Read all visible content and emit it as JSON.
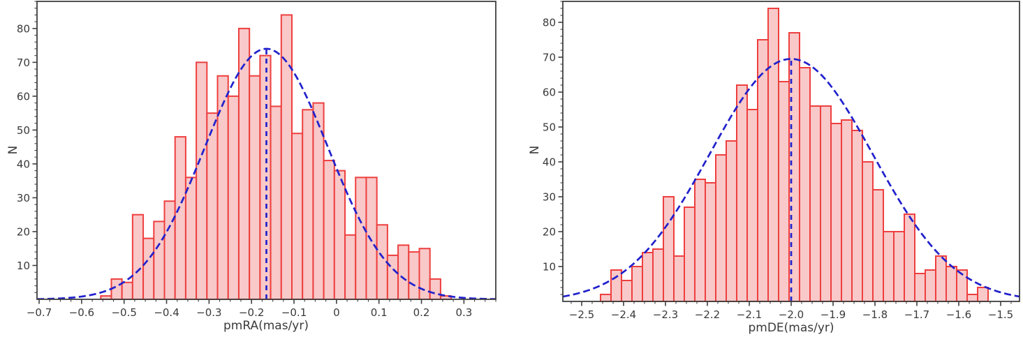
{
  "figure": {
    "background": "#ffffff",
    "description": "Two proper-motion histograms with Gaussian fits and mean lines"
  },
  "chart_data": [
    {
      "type": "bar",
      "subtype": "histogram-with-gaussian-fit",
      "title": "",
      "xlabel": "pmRA(mas/yr)",
      "ylabel": "N",
      "xlim": [
        -0.705,
        0.375
      ],
      "ylim": [
        0,
        88
      ],
      "x_tick_values": [
        -0.7,
        -0.6,
        -0.5,
        -0.4,
        -0.3,
        -0.2,
        -0.1,
        0,
        0.1,
        0.2,
        0.3
      ],
      "x_tick_labels": [
        "−0.7",
        "−0.6",
        "−0.5",
        "−0.4",
        "−0.3",
        "−0.2",
        "−0.1",
        "0",
        "0.1",
        "0.2",
        "0.3"
      ],
      "y_tick_values": [
        10,
        20,
        30,
        40,
        50,
        60,
        70,
        80
      ],
      "y_tick_labels": [
        "10",
        "20",
        "30",
        "40",
        "50",
        "60",
        "70",
        "80"
      ],
      "x_minor_step": 0.025,
      "y_minor_step": 2,
      "grid": false,
      "bins": {
        "start": -0.555,
        "width": 0.025,
        "counts": [
          1,
          6,
          5,
          25,
          18,
          23,
          29,
          48,
          36,
          70,
          55,
          66,
          60,
          80,
          66,
          72,
          57,
          84,
          49,
          56,
          58,
          41,
          38,
          19,
          36,
          36,
          22,
          13,
          16,
          14,
          15,
          6,
          1
        ]
      },
      "gaussian_fit": {
        "amplitude": 74,
        "mean": -0.165,
        "sigma": 0.145
      },
      "mean_line": {
        "x": -0.165,
        "top": 74
      },
      "colors": {
        "bar_fill": "#f9c8c8",
        "bar_edge": "#ee3f3f",
        "fit_curve": "#2121cc",
        "mean_line": "#2121cc",
        "axis": "#3f3f3f"
      }
    },
    {
      "type": "bar",
      "subtype": "histogram-with-gaussian-fit",
      "title": "",
      "xlabel": "pmDE(mas/yr)",
      "ylabel": "N",
      "xlim": [
        -2.545,
        -1.455
      ],
      "ylim": [
        0,
        86
      ],
      "x_tick_values": [
        -2.5,
        -2.4,
        -2.3,
        -2.2,
        -2.1,
        -2.0,
        -1.9,
        -1.8,
        -1.7,
        -1.6,
        -1.5
      ],
      "x_tick_labels": [
        "−2.5",
        "−2.4",
        "−2.3",
        "−2.2",
        "−2.1",
        "−2.0",
        "−1.9",
        "−1.8",
        "−1.7",
        "−1.6",
        "−1.5"
      ],
      "y_tick_values": [
        10,
        20,
        30,
        40,
        50,
        60,
        70,
        80
      ],
      "y_tick_labels": [
        "10",
        "20",
        "30",
        "40",
        "50",
        "60",
        "70",
        "80"
      ],
      "x_minor_step": 0.025,
      "y_minor_step": 2,
      "grid": false,
      "bins": {
        "start": -2.455,
        "width": 0.025,
        "counts": [
          2,
          9,
          6,
          10,
          14,
          15,
          30,
          13,
          27,
          35,
          34,
          42,
          46,
          62,
          55,
          75,
          84,
          63,
          77,
          67,
          56,
          56,
          51,
          52,
          49,
          40,
          32,
          20,
          20,
          25,
          8,
          9,
          13,
          10,
          9,
          2,
          4
        ]
      },
      "gaussian_fit": {
        "amplitude": 69.5,
        "mean": -2.0,
        "sigma": 0.195
      },
      "mean_line": {
        "x": -2.0,
        "top": 69.5
      },
      "colors": {
        "bar_fill": "#f9c8c8",
        "bar_edge": "#ee3f3f",
        "fit_curve": "#2121cc",
        "mean_line": "#2121cc",
        "axis": "#3f3f3f"
      }
    }
  ]
}
